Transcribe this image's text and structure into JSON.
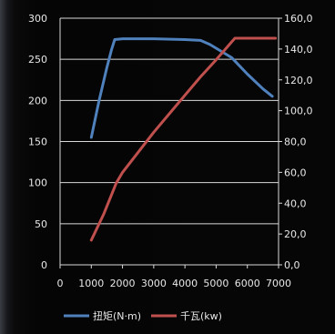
{
  "chart_data": {
    "type": "line",
    "title": "",
    "xlabel": "",
    "ylabel": "",
    "xlim": [
      0,
      7000
    ],
    "ylim": [
      0,
      300
    ],
    "y2lim": [
      0,
      160
    ],
    "x_ticks": [
      "0",
      "1000",
      "2000",
      "3000",
      "4000",
      "5000",
      "6000",
      "7000"
    ],
    "y_ticks": [
      "0",
      "50",
      "100",
      "150",
      "200",
      "250",
      "300"
    ],
    "y2_ticks": [
      "0,0",
      "20,0",
      "40,0",
      "60,0",
      "80,0",
      "100,0",
      "120,0",
      "140,0",
      "160,0"
    ],
    "grid": "horizontal",
    "legend_position": "bottom",
    "series": [
      {
        "name": "扭矩(N·m)",
        "axis": "left",
        "color": "#4f81bd",
        "points": [
          [
            1000,
            155
          ],
          [
            1250,
            200
          ],
          [
            1500,
            240
          ],
          [
            1650,
            262
          ],
          [
            1750,
            274
          ],
          [
            2000,
            275
          ],
          [
            3000,
            275
          ],
          [
            4000,
            274
          ],
          [
            4500,
            273
          ],
          [
            4800,
            268
          ],
          [
            5500,
            252
          ],
          [
            6000,
            232
          ],
          [
            6500,
            214
          ],
          [
            6800,
            205
          ]
        ]
      },
      {
        "name": "千瓦(kw)",
        "axis": "right",
        "color": "#c0504d",
        "points": [
          [
            1000,
            16
          ],
          [
            1400,
            33
          ],
          [
            1800,
            53
          ],
          [
            2000,
            60
          ],
          [
            2500,
            73
          ],
          [
            3000,
            86
          ],
          [
            3500,
            98
          ],
          [
            4000,
            110
          ],
          [
            4500,
            122
          ],
          [
            5000,
            133
          ],
          [
            5300,
            140
          ],
          [
            5600,
            147
          ],
          [
            6000,
            147
          ],
          [
            6500,
            147
          ],
          [
            6900,
            147
          ]
        ]
      }
    ]
  }
}
